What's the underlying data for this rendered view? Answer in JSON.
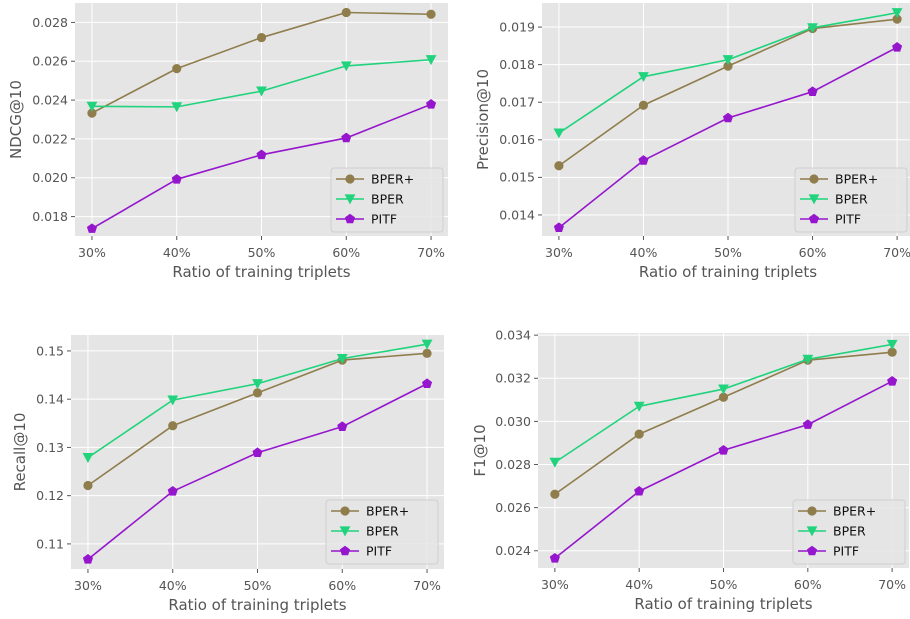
{
  "chart_data": [
    {
      "type": "line",
      "xlabel": "Ratio of training triplets",
      "ylabel": "NDCG@10",
      "x": [
        30,
        40,
        50,
        60,
        70
      ],
      "xticklabels": [
        "30%",
        "40%",
        "50%",
        "60%",
        "70%"
      ],
      "xlim": [
        28,
        72
      ],
      "yticks": [
        0.018,
        0.02,
        0.022,
        0.024,
        0.026,
        0.028
      ],
      "yticklabels": [
        "0.018",
        "0.020",
        "0.022",
        "0.024",
        "0.026",
        "0.028"
      ],
      "ylim": [
        0.017,
        0.029
      ],
      "grid": true,
      "legend": "lower right",
      "series": [
        {
          "name": "BPER+",
          "color": "#8f7d4c",
          "marker": "circle",
          "values": [
            0.02333,
            0.02562,
            0.02722,
            0.02851,
            0.02842
          ]
        },
        {
          "name": "BPER",
          "color": "#20d37c",
          "marker": "triangle-down",
          "values": [
            0.02368,
            0.02365,
            0.02446,
            0.02576,
            0.02608
          ]
        },
        {
          "name": "PITF",
          "color": "#9516cd",
          "marker": "pentagon",
          "values": [
            0.01738,
            0.01992,
            0.02118,
            0.02205,
            0.02378
          ]
        }
      ]
    },
    {
      "type": "line",
      "xlabel": "Ratio of training triplets",
      "ylabel": "Precision@10",
      "x": [
        30,
        40,
        50,
        60,
        70
      ],
      "xticklabels": [
        "30%",
        "40%",
        "50%",
        "60%",
        "70%"
      ],
      "xlim": [
        28,
        72
      ],
      "yticks": [
        0.014,
        0.015,
        0.016,
        0.017,
        0.018,
        0.019
      ],
      "yticklabels": [
        "0.014",
        "0.015",
        "0.016",
        "0.017",
        "0.018",
        "0.019"
      ],
      "ylim": [
        0.01344,
        0.01964
      ],
      "grid": true,
      "legend": "lower right",
      "series": [
        {
          "name": "BPER+",
          "color": "#8f7d4c",
          "marker": "circle",
          "values": [
            0.01531,
            0.01692,
            0.01796,
            0.01896,
            0.01921
          ]
        },
        {
          "name": "BPER",
          "color": "#20d37c",
          "marker": "triangle-down",
          "values": [
            0.01618,
            0.01768,
            0.01813,
            0.01898,
            0.01938
          ]
        },
        {
          "name": "PITF",
          "color": "#9516cd",
          "marker": "pentagon",
          "values": [
            0.01366,
            0.01545,
            0.01658,
            0.01728,
            0.01846
          ]
        }
      ]
    },
    {
      "type": "line",
      "xlabel": "Ratio of training triplets",
      "ylabel": "Recall@10",
      "x": [
        30,
        40,
        50,
        60,
        70
      ],
      "xticklabels": [
        "30%",
        "40%",
        "50%",
        "60%",
        "70%"
      ],
      "xlim": [
        28,
        72
      ],
      "yticks": [
        0.11,
        0.12,
        0.13,
        0.14,
        0.15
      ],
      "yticklabels": [
        "0.11",
        "0.12",
        "0.13",
        "0.14",
        "0.15"
      ],
      "ylim": [
        0.1048,
        0.1533
      ],
      "grid": true,
      "legend": "lower right",
      "series": [
        {
          "name": "BPER+",
          "color": "#8f7d4c",
          "marker": "circle",
          "values": [
            0.1221,
            0.1345,
            0.1413,
            0.1481,
            0.1495
          ]
        },
        {
          "name": "BPER",
          "color": "#20d37c",
          "marker": "triangle-down",
          "values": [
            0.1279,
            0.1398,
            0.1432,
            0.1484,
            0.1514
          ]
        },
        {
          "name": "PITF",
          "color": "#9516cd",
          "marker": "pentagon",
          "values": [
            0.1068,
            0.1209,
            0.1289,
            0.1343,
            0.1432
          ]
        }
      ]
    },
    {
      "type": "line",
      "xlabel": "Ratio of training triplets",
      "ylabel": "F1@10",
      "x": [
        30,
        40,
        50,
        60,
        70
      ],
      "xticklabels": [
        "30%",
        "40%",
        "50%",
        "60%",
        "70%"
      ],
      "xlim": [
        28,
        72
      ],
      "yticks": [
        0.024,
        0.026,
        0.028,
        0.03,
        0.032,
        0.034
      ],
      "yticklabels": [
        "0.024",
        "0.026",
        "0.028",
        "0.030",
        "0.032",
        "0.034"
      ],
      "ylim": [
        0.0232,
        0.0341
      ],
      "grid": true,
      "legend": "lower right",
      "series": [
        {
          "name": "BPER+",
          "color": "#8f7d4c",
          "marker": "circle",
          "values": [
            0.02662,
            0.02941,
            0.03112,
            0.03284,
            0.03321
          ]
        },
        {
          "name": "BPER",
          "color": "#20d37c",
          "marker": "triangle-down",
          "values": [
            0.0281,
            0.0307,
            0.0315,
            0.03288,
            0.03357
          ]
        },
        {
          "name": "PITF",
          "color": "#9516cd",
          "marker": "pentagon",
          "values": [
            0.02365,
            0.02676,
            0.02866,
            0.02985,
            0.03186
          ]
        }
      ]
    }
  ]
}
